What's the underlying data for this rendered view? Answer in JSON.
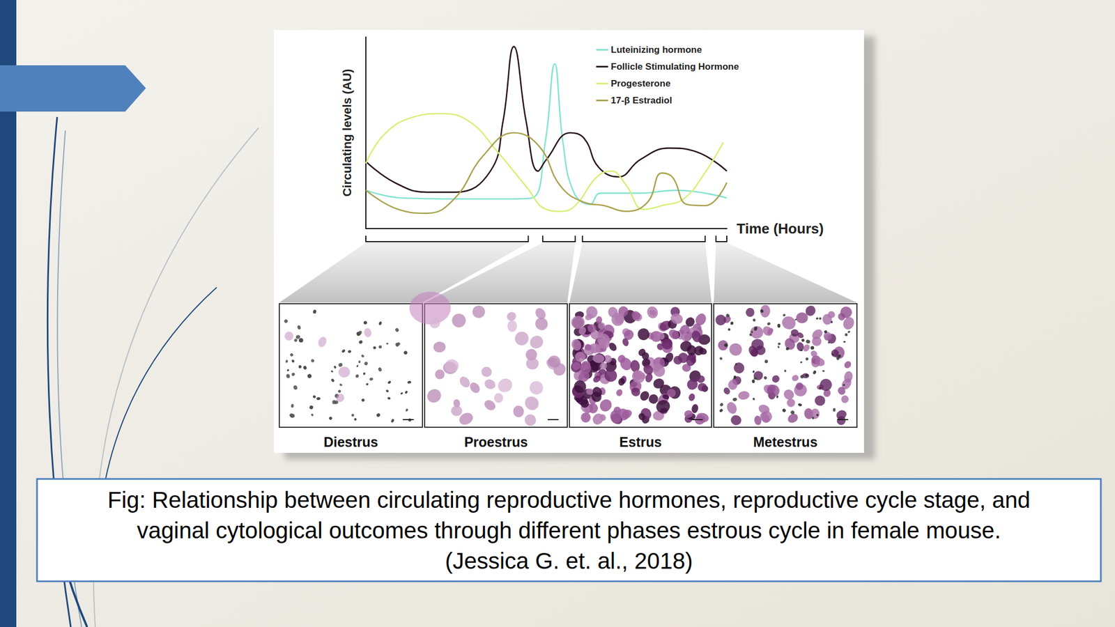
{
  "chart_data": {
    "type": "line",
    "y_label": "Circulating levels (AU)",
    "x_label": "Time (Hours)",
    "xlim": [
      0,
      100
    ],
    "ylim": [
      0,
      100
    ],
    "tick_labels": false,
    "grid": false,
    "legend": "top-right",
    "series": [
      {
        "name": "Luteinizing hormone",
        "color": "#86e3d2",
        "x": [
          0,
          10,
          25,
          40,
          46,
          49.7,
          52.3,
          54.6,
          57.6,
          62,
          65,
          76,
          86,
          100
        ],
        "values": [
          20,
          16,
          15.5,
          15.5,
          16,
          45,
          86,
          45,
          19,
          12.6,
          18.5,
          18.5,
          20,
          16
        ]
      },
      {
        "name": "Follicle Stimulating Hormone",
        "color": "#2b161d",
        "x": [
          0,
          8,
          17,
          25,
          34.5,
          38,
          41,
          44.4,
          47.7,
          50,
          56.6,
          60.5,
          64.5,
          70,
          76,
          84,
          91.7,
          100
        ],
        "values": [
          35,
          24,
          19,
          19,
          30,
          56,
          95,
          56,
          30,
          36,
          50,
          47,
          32,
          27,
          36,
          42,
          40,
          30
        ]
      },
      {
        "name": "Progesterone",
        "color": "#d6f07a",
        "x": [
          0,
          5,
          12.8,
          20.7,
          28.6,
          36.5,
          44.4,
          50,
          54,
          58,
          64,
          68,
          72,
          77,
          82,
          88,
          93.7,
          99
        ],
        "values": [
          34,
          49,
          58,
          60,
          56,
          40,
          22,
          10,
          9,
          12,
          27,
          30,
          23,
          10,
          12,
          15.5,
          28.5,
          45
        ]
      },
      {
        "name": "17-β Estradiol",
        "color": "#a9a24e",
        "x": [
          0,
          9,
          17,
          24.5,
          32.5,
          41,
          48,
          54,
          60.5,
          66,
          72,
          78,
          82,
          85,
          89,
          94,
          100
        ],
        "values": [
          20,
          10,
          8,
          15.5,
          38,
          50,
          43,
          22,
          13.7,
          12,
          9,
          13.7,
          29,
          26.7,
          12.6,
          12,
          24
        ]
      }
    ]
  },
  "stages": [
    {
      "label": "Diestrus",
      "xlim": [
        0,
        45
      ]
    },
    {
      "label": "Proestrus",
      "xlim": [
        49,
        58
      ]
    },
    {
      "label": "Estrus",
      "xlim": [
        60,
        94
      ]
    },
    {
      "label": "Metestrus",
      "xlim": [
        97,
        100
      ]
    }
  ],
  "caption": [
    "Fig: Relationship between circulating reproductive hormones, reproductive cycle stage, and",
    "vaginal cytological outcomes through different phases estrous cycle in female mouse.",
    "(Jessica G. et. al., 2018)"
  ]
}
